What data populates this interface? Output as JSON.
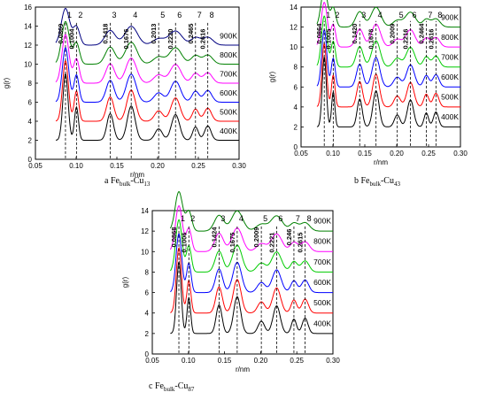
{
  "chart_data": [
    {
      "type": "line",
      "caption_letter": "a",
      "caption_main": "Fe",
      "caption_sub": "bulk",
      "caption_rest": "-Cu",
      "caption_sub2": "13",
      "xlabel": "r/nm",
      "ylabel": "g(r)",
      "xlim": [
        0.05,
        0.3
      ],
      "ylim": [
        0,
        16
      ],
      "xticks": [
        "0.05",
        "0.10",
        "0.15",
        "0.20",
        "0.25",
        "0.30"
      ],
      "yticks": [
        "0",
        "2",
        "4",
        "6",
        "8",
        "10",
        "12",
        "14",
        "16"
      ],
      "series_labels": [
        "400K",
        "500K",
        "600K",
        "700K",
        "800K",
        "900K"
      ],
      "series_colors": [
        "#000000",
        "#ff0000",
        "#0000ff",
        "#ff00ff",
        "#008000",
        "#000080"
      ],
      "offset_step": 2,
      "peaks": [
        {
          "idx": "1",
          "r": 0.0869,
          "label": "0.0869"
        },
        {
          "idx": "2",
          "r": 0.1004,
          "label": "0.1004"
        },
        {
          "idx": "3",
          "r": 0.1418,
          "label": "0.1418"
        },
        {
          "idx": "4",
          "r": 0.1676,
          "label": "0.1676"
        },
        {
          "idx": "5",
          "r": 0.2013,
          "label": "0.2013"
        },
        {
          "idx": "6",
          "r": 0.222,
          "label": "0.2220"
        },
        {
          "idx": "7",
          "r": 0.2465,
          "label": "0.2465"
        },
        {
          "idx": "8",
          "r": 0.2616,
          "label": "0.2616"
        }
      ]
    },
    {
      "type": "line",
      "caption_letter": "b",
      "caption_main": "Fe",
      "caption_sub": "bulk",
      "caption_rest": "-Cu",
      "caption_sub2": "43",
      "xlabel": "r/nm",
      "ylabel": "g(r)",
      "xlim": [
        0.05,
        0.3
      ],
      "ylim": [
        0,
        14
      ],
      "xticks": [
        "0.05",
        "0.10",
        "0.15",
        "0.20",
        "0.25",
        "0.30"
      ],
      "yticks": [
        "0",
        "2",
        "4",
        "6",
        "8",
        "10",
        "12",
        "14"
      ],
      "series_labels": [
        "400K",
        "500K",
        "600K",
        "700K",
        "800K",
        "900K"
      ],
      "series_colors": [
        "#000000",
        "#ff0000",
        "#0000ff",
        "#00cc00",
        "#ff00ff",
        "#008000"
      ],
      "offset_step": 2,
      "peaks": [
        {
          "idx": "1",
          "r": 0.0864,
          "label": "0.0864"
        },
        {
          "idx": "2",
          "r": 0.1005,
          "label": "0.1005"
        },
        {
          "idx": "3",
          "r": 0.142,
          "label": "0.1420"
        },
        {
          "idx": "4",
          "r": 0.1676,
          "label": "0.1676"
        },
        {
          "idx": "5",
          "r": 0.2009,
          "label": "0.2009"
        },
        {
          "idx": "6",
          "r": 0.2216,
          "label": "0.2216"
        },
        {
          "idx": "7",
          "r": 0.2464,
          "label": "0.2464"
        },
        {
          "idx": "8",
          "r": 0.2616,
          "label": "0.2616"
        }
      ]
    },
    {
      "type": "line",
      "caption_letter": "c",
      "caption_main": "Fe",
      "caption_sub": "bulk",
      "caption_rest": "-Cu",
      "caption_sub2": "87",
      "xlabel": "r/nm",
      "ylabel": "g(r)",
      "xlim": [
        0.05,
        0.3
      ],
      "ylim": [
        0,
        14
      ],
      "xticks": [
        "0.05",
        "0.10",
        "0.15",
        "0.20",
        "0.25",
        "0.30"
      ],
      "yticks": [
        "0",
        "2",
        "4",
        "6",
        "8",
        "10",
        "12",
        "14"
      ],
      "series_labels": [
        "400K",
        "500K",
        "600K",
        "700K",
        "800K",
        "900K"
      ],
      "series_colors": [
        "#000000",
        "#ff0000",
        "#0000ff",
        "#00cc00",
        "#ff00ff",
        "#008000"
      ],
      "offset_step": 2,
      "peaks": [
        {
          "idx": "1",
          "r": 0.0868,
          "label": "0.0868"
        },
        {
          "idx": "2",
          "r": 0.1006,
          "label": "0.1006"
        },
        {
          "idx": "3",
          "r": 0.1424,
          "label": "0.1424"
        },
        {
          "idx": "4",
          "r": 0.1675,
          "label": "0.1675"
        },
        {
          "idx": "5",
          "r": 0.2009,
          "label": "0.2009"
        },
        {
          "idx": "6",
          "r": 0.2221,
          "label": "0.2221"
        },
        {
          "idx": "7",
          "r": 0.246,
          "label": "0.246"
        },
        {
          "idx": "8",
          "r": 0.2615,
          "label": "0.2615"
        }
      ]
    }
  ]
}
